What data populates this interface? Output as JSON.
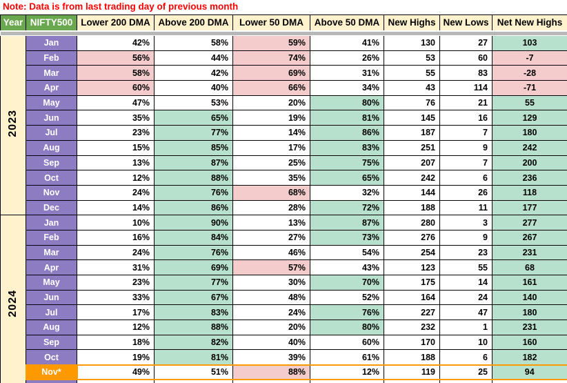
{
  "note": "Note: Data is from last trading day of previous month",
  "columns": [
    "Year",
    "NIFTY500",
    "Lower 200 DMA",
    "Above 200 DMA",
    "Lower 50 DMA",
    "Above 50 DMA",
    "New Highs",
    "New Lows",
    "Net New Highs"
  ],
  "colors": {
    "note_red": "#ff0000",
    "header_green": "#6aa84f",
    "header_cream": "#fff2cc",
    "year_cream": "#fff2cc",
    "month_purple": "#8e7cc3",
    "cell_white": "#ffffff",
    "cell_green": "#b7e1cd",
    "cell_pink": "#f4cccc",
    "highlight_orange": "#ff9900",
    "divider_gray": "#b7b7b7",
    "border_black": "#000000"
  },
  "years": [
    {
      "label": "2023",
      "rows": [
        {
          "month": "Jan",
          "values": [
            "42%",
            "58%",
            "59%",
            "41%",
            "130",
            "27",
            "103"
          ],
          "bg": [
            "w",
            "w",
            "p",
            "w",
            "w",
            "w",
            "g"
          ]
        },
        {
          "month": "Feb",
          "values": [
            "56%",
            "44%",
            "74%",
            "26%",
            "53",
            "60",
            "-7"
          ],
          "bg": [
            "p",
            "w",
            "p",
            "w",
            "w",
            "w",
            "p"
          ]
        },
        {
          "month": "Mar",
          "values": [
            "58%",
            "42%",
            "69%",
            "31%",
            "55",
            "83",
            "-28"
          ],
          "bg": [
            "p",
            "w",
            "p",
            "w",
            "w",
            "w",
            "p"
          ]
        },
        {
          "month": "Apr",
          "values": [
            "60%",
            "40%",
            "66%",
            "34%",
            "43",
            "114",
            "-71"
          ],
          "bg": [
            "p",
            "w",
            "p",
            "w",
            "w",
            "w",
            "p"
          ]
        },
        {
          "month": "May",
          "values": [
            "47%",
            "53%",
            "20%",
            "80%",
            "76",
            "21",
            "55"
          ],
          "bg": [
            "w",
            "w",
            "w",
            "g",
            "w",
            "w",
            "g"
          ]
        },
        {
          "month": "Jun",
          "values": [
            "35%",
            "65%",
            "19%",
            "81%",
            "145",
            "16",
            "129"
          ],
          "bg": [
            "w",
            "g",
            "w",
            "g",
            "w",
            "w",
            "g"
          ]
        },
        {
          "month": "Jul",
          "values": [
            "23%",
            "77%",
            "14%",
            "86%",
            "187",
            "7",
            "180"
          ],
          "bg": [
            "w",
            "g",
            "w",
            "g",
            "w",
            "w",
            "g"
          ]
        },
        {
          "month": "Aug",
          "values": [
            "15%",
            "85%",
            "17%",
            "83%",
            "251",
            "9",
            "242"
          ],
          "bg": [
            "w",
            "g",
            "w",
            "g",
            "w",
            "w",
            "g"
          ]
        },
        {
          "month": "Sep",
          "values": [
            "13%",
            "87%",
            "25%",
            "75%",
            "207",
            "7",
            "200"
          ],
          "bg": [
            "w",
            "g",
            "w",
            "g",
            "w",
            "w",
            "g"
          ]
        },
        {
          "month": "Oct",
          "values": [
            "12%",
            "88%",
            "35%",
            "65%",
            "242",
            "6",
            "236"
          ],
          "bg": [
            "w",
            "g",
            "w",
            "g",
            "w",
            "w",
            "g"
          ]
        },
        {
          "month": "Nov",
          "values": [
            "24%",
            "76%",
            "68%",
            "32%",
            "144",
            "26",
            "118"
          ],
          "bg": [
            "w",
            "g",
            "p",
            "w",
            "w",
            "w",
            "g"
          ]
        },
        {
          "month": "Dec",
          "values": [
            "14%",
            "86%",
            "28%",
            "72%",
            "188",
            "11",
            "177"
          ],
          "bg": [
            "w",
            "g",
            "w",
            "g",
            "w",
            "w",
            "g"
          ]
        }
      ]
    },
    {
      "label": "2024",
      "rows": [
        {
          "month": "Jan",
          "values": [
            "10%",
            "90%",
            "13%",
            "87%",
            "280",
            "3",
            "277"
          ],
          "bg": [
            "w",
            "g",
            "w",
            "g",
            "w",
            "w",
            "g"
          ]
        },
        {
          "month": "Feb",
          "values": [
            "16%",
            "84%",
            "27%",
            "73%",
            "276",
            "9",
            "267"
          ],
          "bg": [
            "w",
            "g",
            "w",
            "g",
            "w",
            "w",
            "g"
          ]
        },
        {
          "month": "Mar",
          "values": [
            "24%",
            "76%",
            "46%",
            "54%",
            "254",
            "23",
            "231"
          ],
          "bg": [
            "w",
            "g",
            "w",
            "w",
            "w",
            "w",
            "g"
          ]
        },
        {
          "month": "Apr",
          "values": [
            "31%",
            "69%",
            "57%",
            "43%",
            "123",
            "55",
            "68"
          ],
          "bg": [
            "w",
            "g",
            "p",
            "w",
            "w",
            "w",
            "g"
          ]
        },
        {
          "month": "May",
          "values": [
            "23%",
            "77%",
            "30%",
            "70%",
            "175",
            "14",
            "161"
          ],
          "bg": [
            "w",
            "g",
            "w",
            "g",
            "w",
            "w",
            "g"
          ]
        },
        {
          "month": "Jun",
          "values": [
            "33%",
            "67%",
            "48%",
            "52%",
            "164",
            "24",
            "140"
          ],
          "bg": [
            "w",
            "g",
            "w",
            "w",
            "w",
            "w",
            "g"
          ]
        },
        {
          "month": "Jul",
          "values": [
            "17%",
            "83%",
            "24%",
            "76%",
            "227",
            "47",
            "180"
          ],
          "bg": [
            "w",
            "g",
            "w",
            "g",
            "w",
            "w",
            "g"
          ]
        },
        {
          "month": "Aug",
          "values": [
            "12%",
            "88%",
            "20%",
            "80%",
            "232",
            "1",
            "231"
          ],
          "bg": [
            "w",
            "g",
            "w",
            "g",
            "w",
            "w",
            "g"
          ]
        },
        {
          "month": "Sep",
          "values": [
            "18%",
            "82%",
            "40%",
            "60%",
            "170",
            "10",
            "160"
          ],
          "bg": [
            "w",
            "g",
            "w",
            "w",
            "w",
            "w",
            "g"
          ]
        },
        {
          "month": "Oct",
          "values": [
            "19%",
            "81%",
            "39%",
            "61%",
            "188",
            "6",
            "182"
          ],
          "bg": [
            "w",
            "g",
            "w",
            "w",
            "w",
            "w",
            "g"
          ]
        },
        {
          "month": "Nov*",
          "values": [
            "49%",
            "51%",
            "88%",
            "12%",
            "119",
            "25",
            "94"
          ],
          "bg": [
            "w",
            "w",
            "p",
            "w",
            "w",
            "w",
            "g"
          ],
          "highlight": true
        }
      ]
    }
  ],
  "partial_row": {
    "visible": true,
    "cell_count": 7
  }
}
